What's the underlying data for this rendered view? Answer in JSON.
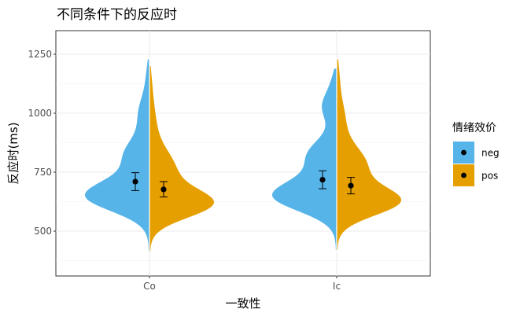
{
  "chart_data": {
    "type": "split-violin",
    "title": "不同条件下的反应时",
    "xlabel": "一致性",
    "ylabel": "反应时(ms)",
    "categories": [
      "Co",
      "Ic"
    ],
    "ylim": [
      310,
      1350
    ],
    "yticks": [
      500,
      750,
      1000,
      1250
    ],
    "grid": true,
    "legend": {
      "title": "情绪效价",
      "position": "right",
      "entries": [
        "neg",
        "pos"
      ]
    },
    "series": [
      {
        "name": "neg",
        "color": "#56B4E9",
        "points": [
          {
            "category": "Co",
            "mean": 710,
            "lower": 672,
            "upper": 748
          },
          {
            "category": "Ic",
            "mean": 718,
            "lower": 680,
            "upper": 756
          }
        ]
      },
      {
        "name": "pos",
        "color": "#E69F00",
        "points": [
          {
            "category": "Co",
            "mean": 677,
            "lower": 645,
            "upper": 710
          },
          {
            "category": "Ic",
            "mean": 693,
            "lower": 658,
            "upper": 728
          }
        ]
      }
    ]
  }
}
